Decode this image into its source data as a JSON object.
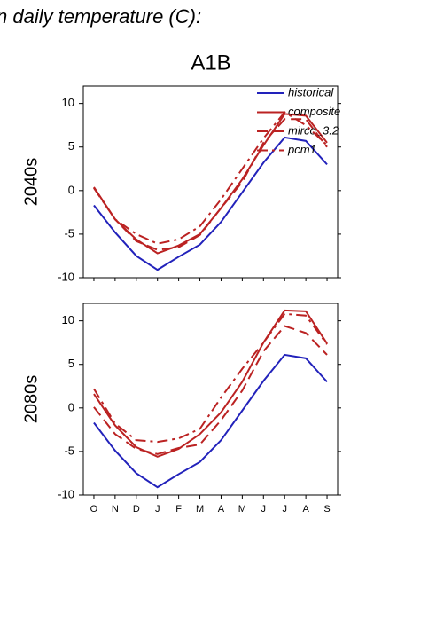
{
  "chart_data": [
    {
      "type": "line",
      "title": "n daily temperature (C):",
      "subtitle": "A1B",
      "ylabel": "2040s",
      "ylim": [
        -10,
        12
      ],
      "yticks": [
        -10,
        -5,
        0,
        5,
        10
      ],
      "series": [
        {
          "name": "historical",
          "color": "#2222bb",
          "linestyle": "solid",
          "values": [
            -1.7,
            -4.8,
            -7.5,
            -9.1,
            -7.6,
            -6.2,
            -3.6,
            -0.2,
            3.2,
            6.1,
            5.7,
            3.0
          ]
        },
        {
          "name": "composite",
          "color": "#bb2222",
          "linestyle": "solid",
          "values": [
            0.4,
            -3.3,
            -5.6,
            -7.2,
            -6.3,
            -5.0,
            -2.0,
            1.3,
            5.2,
            8.8,
            8.6,
            5.5
          ]
        },
        {
          "name": "mirco_3.2",
          "color": "#bb2222",
          "linestyle": "dashed",
          "values": [
            0.3,
            -3.3,
            -5.8,
            -6.8,
            -6.5,
            -5.1,
            -2.0,
            1.0,
            5.5,
            8.2,
            8.2,
            5.0
          ]
        },
        {
          "name": "pcm1",
          "color": "#bb2222",
          "linestyle": "dashdot",
          "values": [
            0.3,
            -3.3,
            -5.0,
            -6.1,
            -5.6,
            -4.1,
            -1.0,
            2.5,
            6.0,
            9.0,
            7.5,
            5.2
          ]
        }
      ]
    },
    {
      "type": "line",
      "ylabel": "2080s",
      "categories": [
        "O",
        "N",
        "D",
        "J",
        "F",
        "M",
        "A",
        "M",
        "J",
        "J",
        "A",
        "S"
      ],
      "ylim": [
        -10,
        12
      ],
      "yticks": [
        -10,
        -5,
        0,
        5,
        10
      ],
      "series": [
        {
          "color": "#2222bb",
          "linestyle": "solid",
          "values": [
            -1.7,
            -4.9,
            -7.5,
            -9.1,
            -7.6,
            -6.2,
            -3.7,
            -0.3,
            3.1,
            6.1,
            5.7,
            3.0
          ]
        },
        {
          "color": "#bb2222",
          "linestyle": "solid",
          "values": [
            1.6,
            -2.0,
            -4.5,
            -5.6,
            -4.7,
            -3.0,
            -0.5,
            3.0,
            7.5,
            11.2,
            11.1,
            7.4
          ]
        },
        {
          "color": "#bb2222",
          "linestyle": "dashed",
          "values": [
            0.1,
            -3.0,
            -4.7,
            -5.3,
            -4.6,
            -4.2,
            -1.4,
            2.0,
            6.5,
            9.4,
            8.6,
            6.1
          ]
        },
        {
          "color": "#bb2222",
          "linestyle": "dashdot",
          "values": [
            2.2,
            -1.8,
            -3.7,
            -3.9,
            -3.5,
            -2.4,
            1.2,
            4.5,
            7.5,
            10.8,
            10.6,
            7.3
          ]
        }
      ]
    }
  ]
}
